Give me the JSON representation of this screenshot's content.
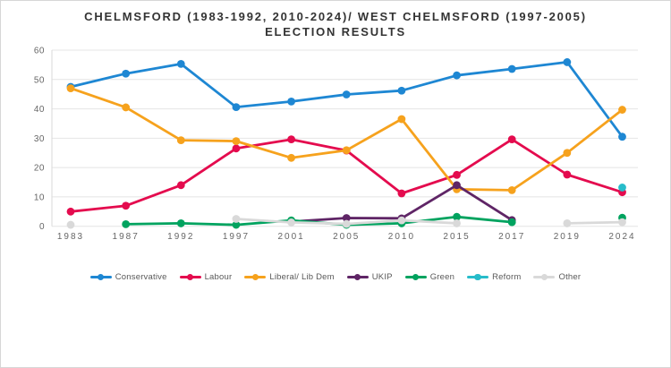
{
  "title": "CHELMSFORD (1983-1992, 2010-2024)/ WEST CHELMSFORD (1997-2005) ELECTION RESULTS",
  "colors": {
    "background": "#ffffff",
    "border": "#d6d6d6",
    "gridline": "#e4e4e4",
    "axis_line": "#d9d9d9",
    "tick_text": "#666666",
    "legend_text": "#595959",
    "title_text": "#333333"
  },
  "chart_data": {
    "type": "line",
    "categories": [
      "1983",
      "1987",
      "1992",
      "1997",
      "2001",
      "2005",
      "2010",
      "2015",
      "2017",
      "2019",
      "2024"
    ],
    "series": [
      {
        "name": "Conservative",
        "color": "#1e87d3",
        "values": [
          47.5,
          52,
          55.3,
          40.6,
          42.5,
          44.9,
          46.2,
          51.4,
          53.6,
          55.9,
          30.5
        ]
      },
      {
        "name": "Labour",
        "color": "#e40b4e",
        "values": [
          5,
          7,
          14,
          26.5,
          29.6,
          25.8,
          11.2,
          17.5,
          29.6,
          17.6,
          11.6
        ]
      },
      {
        "name": "Liberal/ Lib Dem",
        "color": "#f6a21d",
        "values": [
          47,
          40.5,
          29.3,
          29,
          23.3,
          25.9,
          36.5,
          12.6,
          12.3,
          25,
          39.7
        ]
      },
      {
        "name": "UKIP",
        "color": "#5f2566",
        "values": [
          null,
          null,
          null,
          null,
          1.6,
          2.8,
          2.7,
          14,
          2.1,
          null,
          null
        ]
      },
      {
        "name": "Green",
        "color": "#00a35f",
        "values": [
          null,
          0.7,
          1,
          0.5,
          2,
          0.5,
          1,
          3.2,
          1.4,
          null,
          2.9
        ]
      },
      {
        "name": "Reform",
        "color": "#27bcca",
        "values": [
          null,
          null,
          null,
          null,
          null,
          null,
          null,
          null,
          null,
          null,
          13.2
        ]
      },
      {
        "name": "Other",
        "color": "#d9d9d9",
        "values": [
          0.5,
          null,
          null,
          2.5,
          1.3,
          0.8,
          2,
          1,
          null,
          1,
          1.4
        ]
      }
    ],
    "ylim": [
      0,
      60
    ],
    "yticks": [
      0,
      10,
      20,
      30,
      40,
      50,
      60
    ],
    "grid": true,
    "legend_position": "bottom"
  }
}
